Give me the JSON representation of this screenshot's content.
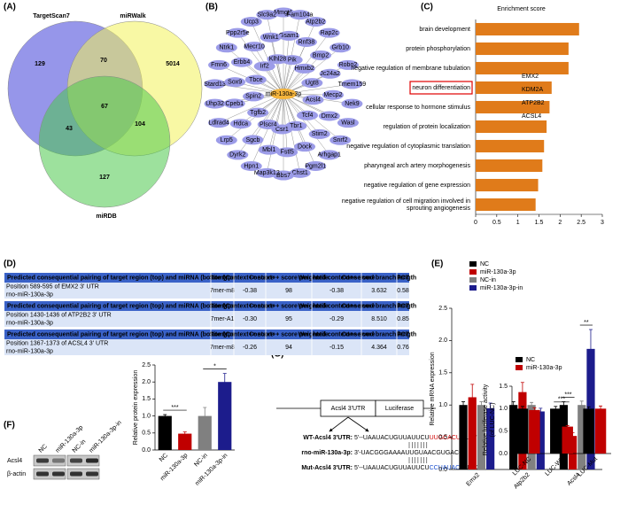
{
  "panel_labels": [
    "(A)",
    "(B)",
    "(C)",
    "(D)",
    "(E)",
    "(F)",
    "(G)"
  ],
  "venn": {
    "sets": [
      {
        "name": "TargetScan7",
        "color": "#3f3fd8"
      },
      {
        "name": "miRWalk",
        "color": "#f2f25a"
      },
      {
        "name": "miRDB",
        "color": "#4cc94c"
      }
    ],
    "regions": [
      129,
      70,
      5014,
      67,
      43,
      104,
      127
    ]
  },
  "network": {
    "hub": "miR-130a-3p",
    "nodes": [
      "Mmgt1",
      "Fam104a",
      "Atp2b2",
      "Rap2c",
      "Grb10",
      "Robo2",
      "Tmem159",
      "Nek9",
      "Wasl",
      "Snrf2",
      "Arhgap1",
      "Pgm2l1",
      "Chst1",
      "Bbs7",
      "Map3k12",
      "Hpn1",
      "Dyrk2",
      "Lrp5",
      "Ldlrad4",
      "Uhp32",
      "Stard13",
      "Fmn6",
      "Ntrk1",
      "Ppp2r5e",
      "Ucp3",
      "Slc9a2",
      "Gsam1",
      "Rnf38",
      "Bmp2",
      "Jc24a2",
      "Mecp2",
      "Dmx2",
      "Stim2",
      "Dock",
      "Fstl5",
      "Mbl1",
      "Sgcb",
      "Hdca",
      "Cpeb1",
      "Sox9",
      "Erbb4",
      "Mecr10",
      "Wnk1",
      "Pik",
      "Hmxb2",
      "Ugt8",
      "Acsl4",
      "Tcf4",
      "Tbr1",
      "Csr1",
      "Plscr4",
      "Tgfb2",
      "Spin2",
      "Tbce",
      "Irf2",
      "Klhl28"
    ]
  },
  "table": {
    "header": [
      "Predicted consequential pairing of target region (top) and miRNA (bottom)",
      "Site type",
      "Context++ score",
      "Context++ score percentile",
      "Weighted context++ score",
      "Conserved branch length",
      "PCT"
    ],
    "blocks": [
      {
        "position": "Position 589-595 of EMX2 3' UTR",
        "mirna": "rno-miR-130a-3p",
        "cells": [
          "7mer-m8",
          "-0.38",
          "98",
          "-0.38",
          "3.632",
          "0.58"
        ]
      },
      {
        "position": "Position 1430-1436 of ATP2B2 3' UTR",
        "mirna": "rno-miR-130a-3p",
        "cells": [
          "7mer-A1",
          "-0.30",
          "95",
          "-0.29",
          "8.510",
          "0.85"
        ]
      },
      {
        "position": "Position 1367-1373 of ACSL4 3' UTR",
        "mirna": "rno-miR-130a-3p",
        "cells": [
          "7mer-m8",
          "-0.26",
          "94",
          "-0.15",
          "4.364",
          "0.76"
        ]
      }
    ]
  },
  "western_blot": {
    "lanes": [
      "NC",
      "miR-130a-3p",
      "NC-in",
      "miR-130a-3p-in"
    ],
    "rows": [
      "Acsl4",
      "β-actin"
    ]
  },
  "construct": {
    "utr": "Acsl4 3'UTR",
    "luc": "Luciferase",
    "wt": {
      "label": "WT-Acsl4 3'UTR:",
      "pre": "5'--UAAUACUGUUAUUCU",
      "site": "UUGCACU",
      "post": "U...-3'"
    },
    "mirna": {
      "label": "rno-miR-130a-3p:",
      "seq": "3'-UACGGGAAAAUUGUAACGUGAC-5'"
    },
    "mut": {
      "label": "Mut-Acsl4 3'UTR:",
      "pre": "5'--UAAUACUGUUAUUCU",
      "site": "CCUAUACU",
      "post": "U...-3'"
    }
  },
  "chart_data": [
    {
      "type": "barh",
      "title": "Enrichment score",
      "color": "#e07b1a",
      "categories": [
        "brain development",
        "protein phosphorylation",
        "negative regulation of membrane tubulation",
        "neuron differentiation",
        "cellular response to hormone stimulus",
        "regulation of protein localization",
        "negative regulation of cytoplasmic translation",
        "pharyngeal arch artery morphogenesis",
        "negative regulation of gene expression",
        "negative regulation of cell migration involved in sprouting angiogenesis"
      ],
      "values": [
        2.45,
        2.2,
        2.2,
        1.8,
        1.75,
        1.68,
        1.62,
        1.58,
        1.48,
        1.42
      ],
      "xlim": [
        0,
        3
      ],
      "xticks": [
        0,
        0.5,
        1,
        1.5,
        2,
        2.5,
        3
      ],
      "annotation": [
        "EMX2",
        "KDM2A",
        "ATP2B2",
        "ACSL4"
      ]
    },
    {
      "type": "bar",
      "ylabel": "Relative mRNA expression",
      "categories": [
        "Emx2",
        "Atp2b2",
        "Acsl4"
      ],
      "series": [
        {
          "name": "NC",
          "color": "#000000",
          "values": [
            1.0,
            1.0,
            1.0
          ],
          "errors": [
            0.05,
            0.05,
            0.05
          ]
        },
        {
          "name": "miR-130a-3p",
          "color": "#c00000",
          "values": [
            1.12,
            1.2,
            0.52
          ],
          "errors": [
            0.2,
            0.15,
            0.05
          ]
        },
        {
          "name": "NC-in",
          "color": "#808080",
          "values": [
            1.0,
            1.0,
            1.0
          ],
          "errors": [
            0.05,
            0.04,
            0.06
          ]
        },
        {
          "name": "miR-130a-3p-in",
          "color": "#1c1c8c",
          "values": [
            0.95,
            0.9,
            1.87
          ],
          "errors": [
            0.08,
            0.05,
            0.3
          ]
        }
      ],
      "ylim": [
        0,
        2.5
      ],
      "yticks": [
        {
          "value": 0,
          "label": "0.0"
        },
        {
          "value": 0.5,
          "label": "0.5"
        },
        {
          "value": 1,
          "label": "1.0"
        },
        {
          "value": 1.5,
          "label": "1.5"
        },
        {
          "value": 2,
          "label": "2.0"
        },
        {
          "value": 2.5,
          "label": "2.5"
        }
      ],
      "significance": [
        "***",
        "**"
      ]
    },
    {
      "type": "bar",
      "ylabel": "Relative protein expression",
      "categories": [
        "NC",
        "miR-130a-3p",
        "NC-in",
        "miR-130a-3p-in"
      ],
      "values": [
        1.0,
        0.48,
        1.0,
        2.0
      ],
      "errors": [
        0.04,
        0.05,
        0.25,
        0.25
      ],
      "colors": [
        "#000000",
        "#c00000",
        "#808080",
        "#1c1c8c"
      ],
      "ylim": [
        0,
        2.5
      ],
      "yticks": [
        {
          "value": 0,
          "label": "0.0"
        },
        {
          "value": 0.5,
          "label": "0.5"
        },
        {
          "value": 1,
          "label": "1.0"
        },
        {
          "value": 1.5,
          "label": "1.5"
        },
        {
          "value": 2,
          "label": "2.0"
        },
        {
          "value": 2.5,
          "label": "2.5"
        }
      ],
      "significance": [
        "***",
        "*"
      ]
    },
    {
      "type": "bar",
      "ylabel": [
        "Relative luciferase activity",
        "(of LUC-NC)"
      ],
      "categories": [
        "LUC-NC",
        "LUC-WT",
        "LUC-Mut"
      ],
      "series": [
        {
          "name": "NC",
          "color": "#000000",
          "values": [
            1.0,
            1.0,
            1.0
          ],
          "errors": [
            0.05,
            0.05,
            0.04
          ]
        },
        {
          "name": "miR-130a-3p",
          "color": "#c00000",
          "values": [
            0.97,
            0.6,
            1.0
          ],
          "errors": [
            0.05,
            0.02,
            0.06
          ]
        }
      ],
      "ylim": [
        0,
        1.5
      ],
      "yticks": [
        {
          "value": 0,
          "label": "0.0"
        },
        {
          "value": 0.5,
          "label": "0.5"
        },
        {
          "value": 1,
          "label": "1.0"
        },
        {
          "value": 1.5,
          "label": "1.5"
        }
      ],
      "significance": [
        "***"
      ]
    }
  ]
}
